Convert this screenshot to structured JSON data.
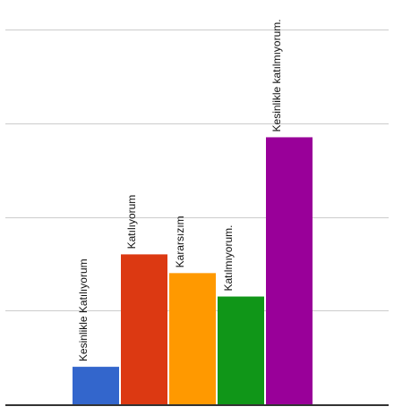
{
  "chart_data": {
    "type": "bar",
    "categories": [
      "Kesinlikle Katılıyorum",
      "Katılıyorum",
      "Kararsızım",
      "Katılmıyorum.",
      "Kesinlikle katılmıyorum."
    ],
    "values": [
      8,
      32,
      28,
      23,
      57
    ],
    "colors": [
      "#3366cc",
      "#dc3912",
      "#ff9900",
      "#109618",
      "#990099"
    ],
    "ylim": [
      0,
      80
    ],
    "grid": true,
    "gridline_values": [
      20,
      40,
      60,
      80
    ],
    "title": "",
    "xlabel": "",
    "ylabel": ""
  }
}
